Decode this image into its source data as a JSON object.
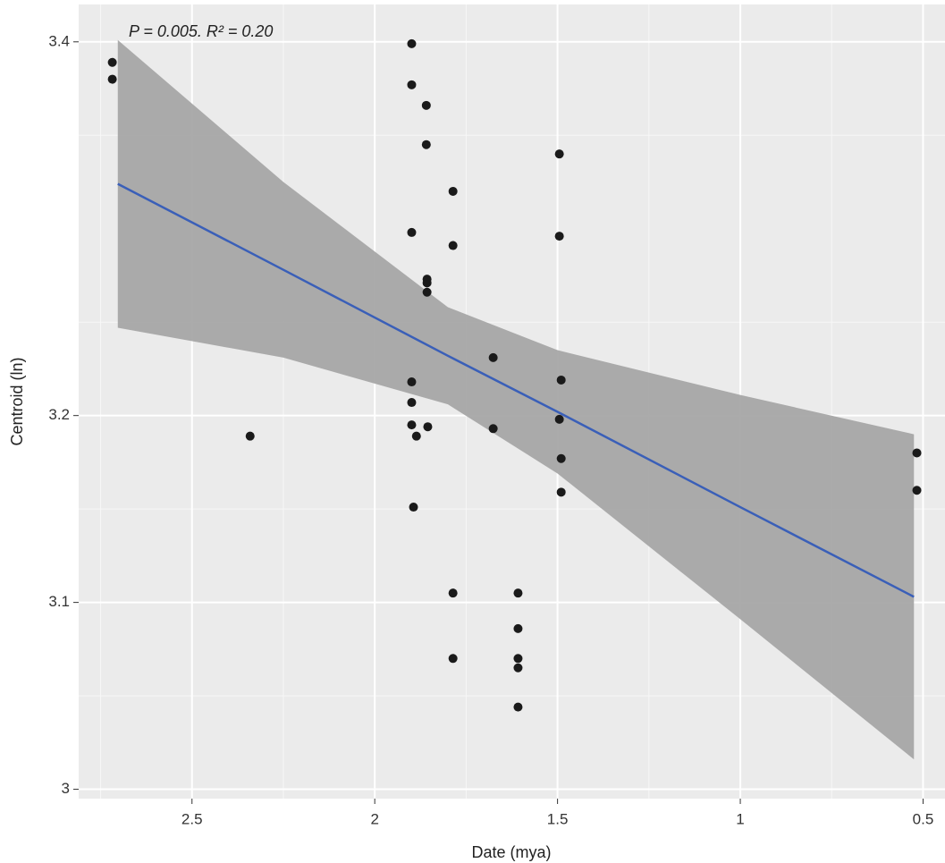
{
  "chart_data": {
    "type": "scatter",
    "annotation": "P = 0.005. R² = 0.20",
    "x_label": "Date (mya)",
    "y_label": "Centroid (ln)",
    "xlim": [
      2.81,
      0.44
    ],
    "ylim": [
      2.995,
      3.42
    ],
    "xticks": [
      2.5,
      2.0,
      1.5,
      1.0,
      0.5
    ],
    "yticks": [
      3.0,
      3.1,
      3.2,
      3.4
    ],
    "x_minor_ticks": [
      2.75,
      2.25,
      1.75,
      1.25,
      0.75
    ],
    "y_minor_ticks": [
      3.05,
      3.15,
      3.25,
      3.35
    ],
    "grid": true,
    "point_color": "#1a1a1a",
    "x": [
      2.718,
      2.718,
      2.341,
      1.899,
      1.899,
      1.859,
      1.859,
      1.786,
      1.899,
      1.786,
      1.857,
      1.857,
      1.857,
      1.899,
      1.899,
      1.899,
      1.886,
      1.855,
      1.894,
      1.786,
      1.786,
      1.676,
      1.676,
      1.608,
      1.608,
      1.608,
      1.608,
      1.608,
      1.495,
      1.495,
      1.49,
      1.495,
      1.49,
      1.49,
      0.517,
      0.517
    ],
    "values": [
      3.389,
      3.38,
      3.189,
      3.399,
      3.377,
      3.366,
      3.345,
      3.32,
      3.298,
      3.291,
      3.273,
      3.271,
      3.266,
      3.218,
      3.207,
      3.195,
      3.189,
      3.194,
      3.151,
      3.105,
      3.07,
      3.231,
      3.193,
      3.105,
      3.086,
      3.07,
      3.065,
      3.044,
      3.34,
      3.296,
      3.219,
      3.198,
      3.177,
      3.159,
      3.18,
      3.16
    ],
    "fit": {
      "color": "#3a5fb8",
      "band_color": "#a6a6a6",
      "x": [
        2.703,
        2.25,
        1.8,
        1.5,
        1.0,
        0.525
      ],
      "values": [
        3.324,
        3.278,
        3.232,
        3.202,
        3.151,
        3.103
      ],
      "upper": [
        3.401,
        3.325,
        3.258,
        3.235,
        3.211,
        3.19
      ],
      "lower": [
        3.247,
        3.231,
        3.206,
        3.169,
        3.091,
        3.016
      ]
    }
  }
}
